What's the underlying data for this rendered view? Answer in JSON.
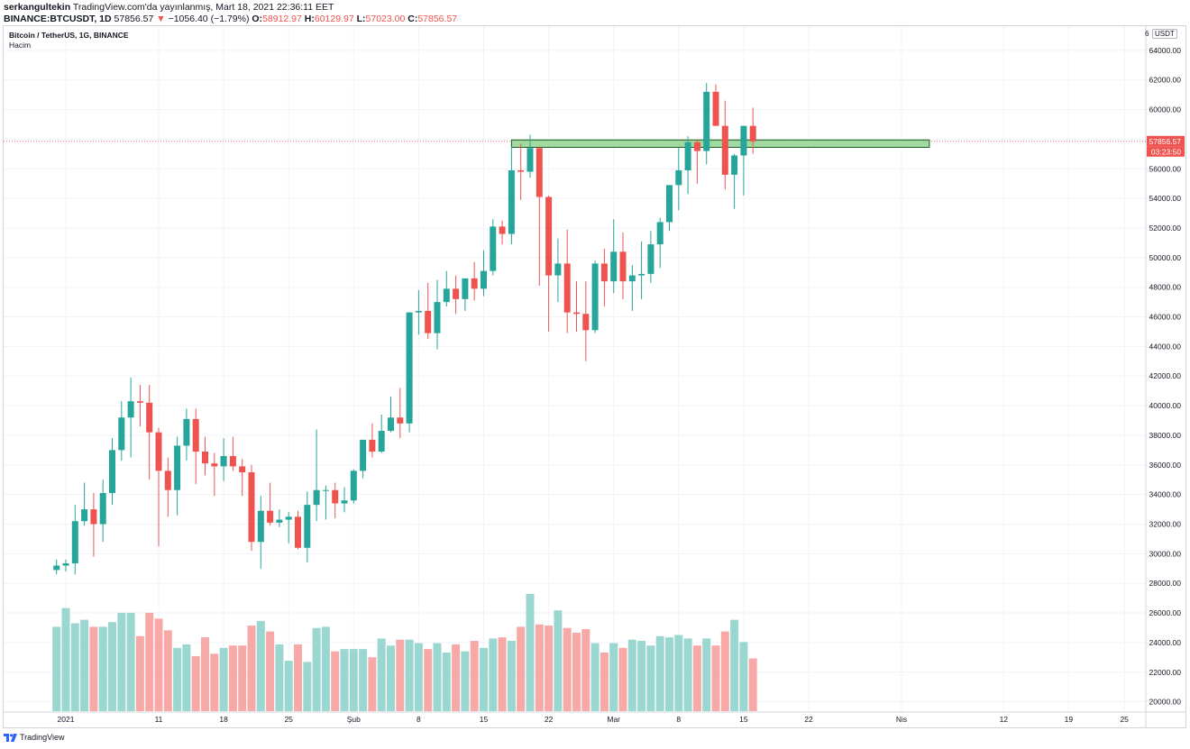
{
  "header": {
    "line1_user": "serkangultekin",
    "line1_rest": " TradingView.com'da yayınlanmış, Mart 18, 2021 22:36:11 EET",
    "symbol": "BINANCE:BTCUSDT, 1D",
    "last": "57856.57",
    "arrow": "▼",
    "change": "−1056.40 (−1.79%)",
    "o_label": "O:",
    "o_val": "58912.97",
    "h_label": "H:",
    "h_val": "60129.97",
    "l_label": "L:",
    "l_val": "57023.00",
    "c_label": "C:",
    "c_val": "57856.57"
  },
  "legend": {
    "title": "Bitcoin / TetherUS, 1G, BINANCE",
    "volume_label": "Hacim"
  },
  "price_scale": {
    "currency_button": "USDT",
    "six_label": "6",
    "last_price_tag": "57856.57",
    "countdown_tag": "03:23:50"
  },
  "footer": {
    "brand": "TradingView"
  },
  "colors": {
    "up": "#26a69a",
    "down": "#ef5350",
    "up_volume": "#9ad7d0",
    "down_volume": "#f7a9a7",
    "zone": "#90d48f",
    "grid": "#f0f3fa"
  },
  "chart_data": {
    "type": "candlestick",
    "title": "Bitcoin / TetherUS, 1G, BINANCE",
    "x_ticks": [
      {
        "label": "2021",
        "day": 0
      },
      {
        "label": "11",
        "day": 10
      },
      {
        "label": "18",
        "day": 17
      },
      {
        "label": "25",
        "day": 24
      },
      {
        "label": "Şub",
        "day": 31
      },
      {
        "label": "8",
        "day": 38
      },
      {
        "label": "15",
        "day": 45
      },
      {
        "label": "22",
        "day": 52
      },
      {
        "label": "Mar",
        "day": 59
      },
      {
        "label": "8",
        "day": 66
      },
      {
        "label": "15",
        "day": 73
      },
      {
        "label": "22",
        "day": 80
      },
      {
        "label": "Nis",
        "day": 90
      },
      {
        "label": "12",
        "day": 101
      },
      {
        "label": "19",
        "day": 108
      },
      {
        "label": "25",
        "day": 114
      }
    ],
    "y_ticks": [
      "64000.00",
      "62000.00",
      "60000.00",
      "58000.00",
      "56000.00",
      "54000.00",
      "52000.00",
      "50000.00",
      "48000.00",
      "46000.00",
      "44000.00",
      "42000.00",
      "40000.00",
      "38000.00",
      "36000.00",
      "34000.00",
      "32000.00",
      "30000.00",
      "28000.00",
      "26000.00",
      "24000.00",
      "22000.00",
      "20000.00"
    ],
    "y_range": [
      19550,
      65150
    ],
    "first_day": -1,
    "ohlc": [
      [
        28900,
        29600,
        28600,
        29200
      ],
      [
        29200,
        29600,
        28800,
        29350
      ],
      [
        29350,
        33300,
        28600,
        32200
      ],
      [
        32200,
        34800,
        31900,
        33000
      ],
      [
        33000,
        34100,
        29800,
        32000
      ],
      [
        32000,
        35000,
        30800,
        34100
      ],
      [
        34100,
        37800,
        33300,
        37000
      ],
      [
        37000,
        40300,
        36300,
        39200
      ],
      [
        39200,
        41900,
        36500,
        40300
      ],
      [
        40300,
        41400,
        38600,
        40200
      ],
      [
        40200,
        41400,
        35000,
        38200
      ],
      [
        38200,
        38500,
        30500,
        35600
      ],
      [
        35600,
        36500,
        32500,
        34300
      ],
      [
        34300,
        37900,
        32600,
        37300
      ],
      [
        37300,
        39800,
        36300,
        39100
      ],
      [
        39100,
        39800,
        34700,
        36900
      ],
      [
        36900,
        37900,
        35300,
        36100
      ],
      [
        36100,
        36800,
        33900,
        35900
      ],
      [
        35900,
        37800,
        34900,
        36600
      ],
      [
        36600,
        37900,
        35600,
        35900
      ],
      [
        35900,
        36400,
        33900,
        35500
      ],
      [
        35500,
        36000,
        30200,
        30800
      ],
      [
        30800,
        33900,
        29000,
        32900
      ],
      [
        32900,
        34800,
        31900,
        32100
      ],
      [
        32100,
        33000,
        31800,
        32300
      ],
      [
        32300,
        32800,
        30700,
        32500
      ],
      [
        32500,
        32900,
        30300,
        30400
      ],
      [
        30400,
        34200,
        29400,
        33300
      ],
      [
        33300,
        38400,
        32200,
        34300
      ],
      [
        34300,
        34600,
        32300,
        34300
      ],
      [
        34300,
        34800,
        32400,
        33400
      ],
      [
        33400,
        34500,
        32800,
        33600
      ],
      [
        33600,
        35700,
        33400,
        35600
      ],
      [
        35600,
        37600,
        35100,
        37700
      ],
      [
        37700,
        38800,
        36500,
        36900
      ],
      [
        36900,
        39400,
        36800,
        38300
      ],
      [
        38300,
        40600,
        38200,
        39200
      ],
      [
        39200,
        41200,
        37800,
        38800
      ],
      [
        38800,
        46200,
        38200,
        46300
      ],
      [
        46300,
        47800,
        44800,
        46400
      ],
      [
        46400,
        48300,
        44500,
        44900
      ],
      [
        44900,
        48500,
        43800,
        47000
      ],
      [
        47000,
        49100,
        46700,
        47900
      ],
      [
        47900,
        48800,
        46200,
        47200
      ],
      [
        47200,
        48200,
        46400,
        48600
      ],
      [
        48600,
        49700,
        47100,
        47900
      ],
      [
        47900,
        50500,
        47400,
        49100
      ],
      [
        49100,
        52600,
        48800,
        52100
      ],
      [
        52100,
        52500,
        50900,
        51600
      ],
      [
        51600,
        57500,
        50900,
        55900
      ],
      [
        55900,
        57700,
        53900,
        55800
      ],
      [
        55800,
        58300,
        55400,
        57400
      ],
      [
        57400,
        57500,
        48100,
        54100
      ],
      [
        54100,
        54200,
        45000,
        48800
      ],
      [
        48800,
        51300,
        47000,
        49600
      ],
      [
        49600,
        51900,
        44900,
        46300
      ],
      [
        46300,
        48400,
        45000,
        46200
      ],
      [
        46200,
        48400,
        43000,
        45100
      ],
      [
        45100,
        49800,
        44900,
        49600
      ],
      [
        49600,
        50600,
        46700,
        48400
      ],
      [
        48400,
        52600,
        47600,
        50400
      ],
      [
        50400,
        51700,
        47200,
        48400
      ],
      [
        48400,
        49500,
        46400,
        48800
      ],
      [
        48800,
        51100,
        47200,
        48900
      ],
      [
        48900,
        51800,
        48300,
        50900
      ],
      [
        50900,
        52700,
        49300,
        52400
      ],
      [
        52400,
        54900,
        51800,
        54900
      ],
      [
        54900,
        57400,
        53200,
        55900
      ],
      [
        55900,
        58200,
        54300,
        57800
      ],
      [
        57800,
        58000,
        55000,
        57200
      ],
      [
        57200,
        61800,
        56300,
        61200
      ],
      [
        61200,
        61700,
        58900,
        58900
      ],
      [
        58900,
        60600,
        54600,
        55600
      ],
      [
        55600,
        57000,
        53300,
        56900
      ],
      [
        56900,
        58900,
        54200,
        58900
      ],
      [
        58900,
        60130,
        57023,
        57857
      ]
    ],
    "volume_relative": [
      0.72,
      0.88,
      0.75,
      0.78,
      0.72,
      0.72,
      0.76,
      0.84,
      0.84,
      0.64,
      0.84,
      0.79,
      0.69,
      0.54,
      0.57,
      0.47,
      0.63,
      0.49,
      0.54,
      0.56,
      0.56,
      0.73,
      0.77,
      0.68,
      0.57,
      0.43,
      0.57,
      0.42,
      0.71,
      0.72,
      0.51,
      0.53,
      0.53,
      0.53,
      0.46,
      0.62,
      0.56,
      0.61,
      0.61,
      0.58,
      0.53,
      0.58,
      0.5,
      0.57,
      0.51,
      0.6,
      0.54,
      0.62,
      0.63,
      0.6,
      0.72,
      1.0,
      0.74,
      0.73,
      0.86,
      0.71,
      0.67,
      0.7,
      0.58,
      0.5,
      0.58,
      0.54,
      0.61,
      0.6,
      0.56,
      0.64,
      0.63,
      0.65,
      0.62,
      0.56,
      0.62,
      0.56,
      0.68,
      0.78,
      0.59,
      0.45
    ],
    "resistance_zone": {
      "from_day": 48,
      "to_day": 93,
      "low": 57450,
      "high": 57950
    },
    "last_price": 57856.57
  }
}
